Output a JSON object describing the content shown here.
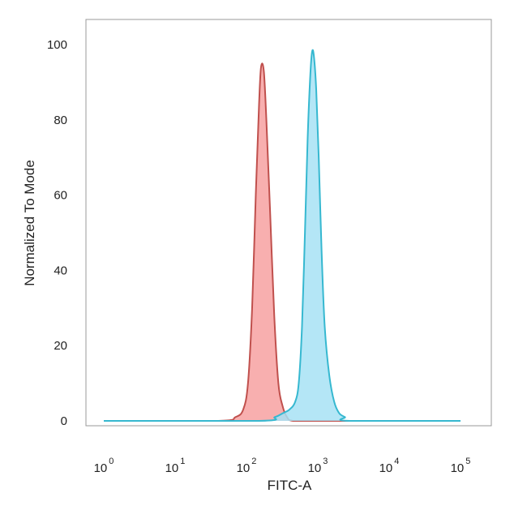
{
  "chart_data": {
    "type": "area",
    "title": "",
    "xlabel": "FITC-A",
    "ylabel": "Normalized To Mode",
    "x_scale": "log",
    "xlim": [
      1,
      100000
    ],
    "ylim": [
      0,
      100
    ],
    "x_ticks": [
      {
        "value": 1,
        "base": "10",
        "exp": "0"
      },
      {
        "value": 10,
        "base": "10",
        "exp": "1"
      },
      {
        "value": 100,
        "base": "10",
        "exp": "2"
      },
      {
        "value": 1000,
        "base": "10",
        "exp": "3"
      },
      {
        "value": 10000,
        "base": "10",
        "exp": "4"
      },
      {
        "value": 100000,
        "base": "10",
        "exp": "5"
      }
    ],
    "y_ticks": [
      0,
      20,
      40,
      60,
      80,
      100
    ],
    "grid": false,
    "legend": "none",
    "series": [
      {
        "fill": "#f7a1a1",
        "stroke": "#c0504d",
        "x": [
          1,
          40,
          70,
          90,
          105,
          120,
          135,
          150,
          160,
          175,
          190,
          215,
          245,
          280,
          320,
          370,
          450,
          1000,
          100000
        ],
        "y": [
          0,
          0,
          1,
          3,
          10,
          30,
          60,
          84,
          94,
          93,
          80,
          55,
          28,
          10,
          4,
          1,
          0,
          0,
          0
        ]
      },
      {
        "fill": "#a7e2f4",
        "stroke": "#36b8d0",
        "x": [
          1,
          150,
          250,
          320,
          400,
          480,
          540,
          600,
          660,
          720,
          780,
          830,
          880,
          950,
          1030,
          1130,
          1250,
          1450,
          1700,
          2000,
          2400,
          2800,
          100000
        ],
        "y": [
          0,
          0,
          1,
          2,
          3,
          5,
          10,
          25,
          50,
          75,
          91,
          98,
          97,
          88,
          70,
          45,
          25,
          12,
          5,
          2,
          1,
          0,
          0
        ]
      }
    ]
  }
}
